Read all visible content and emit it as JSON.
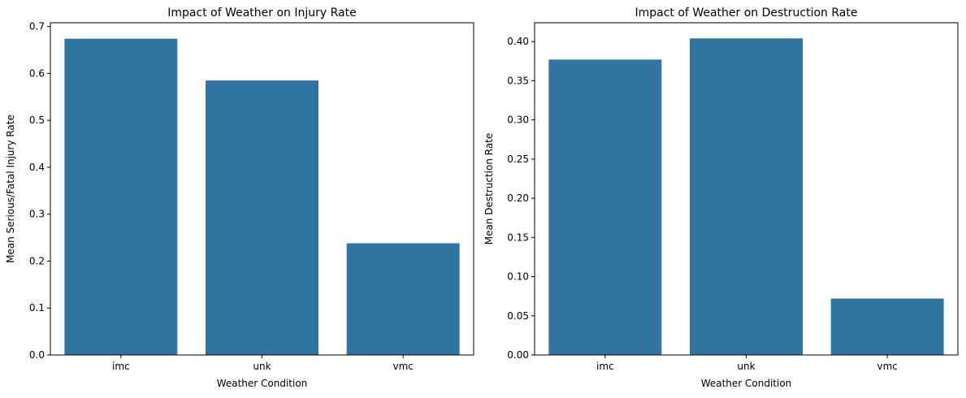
{
  "chart_data": [
    {
      "type": "bar",
      "title": "Impact of Weather on Injury Rate",
      "xlabel": "Weather Condition",
      "ylabel": "Mean Serious/Fatal Injury Rate",
      "categories": [
        "imc",
        "unk",
        "vmc"
      ],
      "values": [
        0.674,
        0.585,
        0.238
      ],
      "ylim": [
        0,
        0.708
      ],
      "yticks": [
        0.0,
        0.1,
        0.2,
        0.3,
        0.4,
        0.5,
        0.6,
        0.7
      ],
      "ytick_labels": [
        "0.0",
        "0.1",
        "0.2",
        "0.3",
        "0.4",
        "0.5",
        "0.6",
        "0.7"
      ],
      "bar_color": "#3274a1",
      "grid": false,
      "legend": "none"
    },
    {
      "type": "bar",
      "title": "Impact of Weather on Destruction Rate",
      "xlabel": "Weather Condition",
      "ylabel": "Mean Destruction Rate",
      "categories": [
        "imc",
        "unk",
        "vmc"
      ],
      "values": [
        0.377,
        0.404,
        0.072
      ],
      "ylim": [
        0,
        0.424
      ],
      "yticks": [
        0.0,
        0.05,
        0.1,
        0.15,
        0.2,
        0.25,
        0.3,
        0.35,
        0.4
      ],
      "ytick_labels": [
        "0.00",
        "0.05",
        "0.10",
        "0.15",
        "0.20",
        "0.25",
        "0.30",
        "0.35",
        "0.40"
      ],
      "bar_color": "#3274a1",
      "grid": false,
      "legend": "none"
    }
  ]
}
